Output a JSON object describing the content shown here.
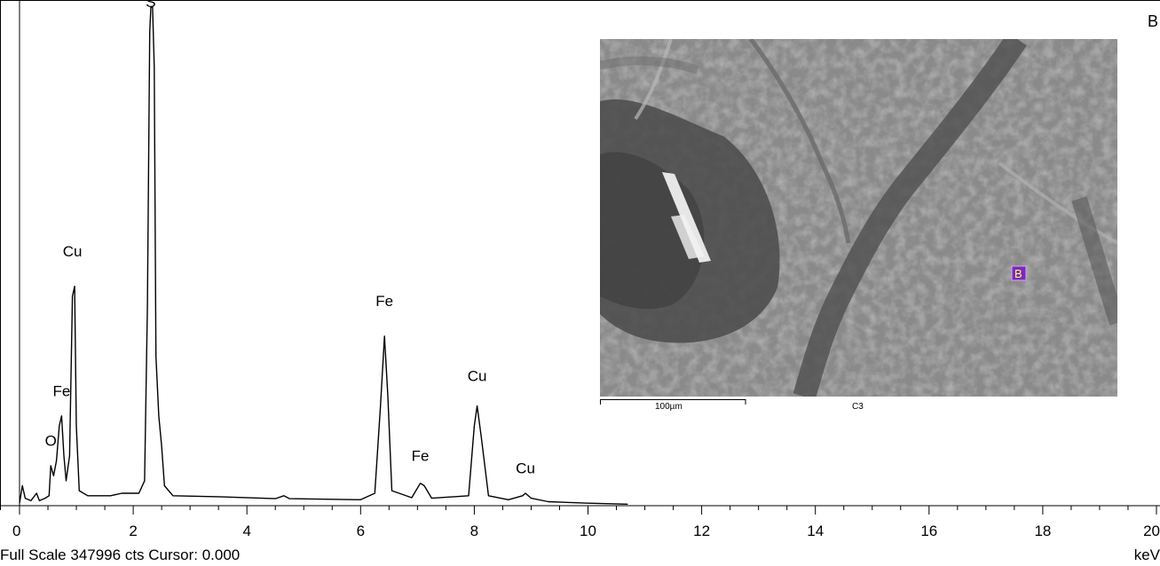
{
  "spectrum_label": "B",
  "status": {
    "text": "Full Scale 347996 cts Cursor: 0.000"
  },
  "unit": "keV",
  "inset": {
    "scale_label": "100µm",
    "image_label": "C3",
    "marker_label": "B"
  },
  "chart_data": {
    "type": "line",
    "xlim": [
      0,
      20
    ],
    "ylim": [
      0,
      347996
    ],
    "xticks": [
      "0",
      "2",
      "4",
      "6",
      "8",
      "10",
      "12",
      "14",
      "16",
      "18",
      "20"
    ],
    "grid": false,
    "series": [
      {
        "points": [
          [
            0.0,
            0.5
          ],
          [
            0.05,
            4
          ],
          [
            0.1,
            1.5
          ],
          [
            0.2,
            1
          ],
          [
            0.3,
            2.5
          ],
          [
            0.35,
            1
          ],
          [
            0.45,
            1.5
          ],
          [
            0.52,
            2
          ],
          [
            0.55,
            8
          ],
          [
            0.6,
            6
          ],
          [
            0.65,
            9
          ],
          [
            0.7,
            16
          ],
          [
            0.74,
            18
          ],
          [
            0.78,
            10
          ],
          [
            0.82,
            5
          ],
          [
            0.88,
            10
          ],
          [
            0.93,
            42
          ],
          [
            0.97,
            44
          ],
          [
            1.0,
            16
          ],
          [
            1.05,
            3
          ],
          [
            1.2,
            2
          ],
          [
            1.6,
            2
          ],
          [
            1.8,
            2.5
          ],
          [
            2.1,
            2.5
          ],
          [
            2.2,
            5
          ],
          [
            2.25,
            40
          ],
          [
            2.29,
            95
          ],
          [
            2.31,
            100
          ],
          [
            2.34,
            100
          ],
          [
            2.37,
            88
          ],
          [
            2.4,
            30
          ],
          [
            2.45,
            18
          ],
          [
            2.5,
            12
          ],
          [
            2.55,
            4
          ],
          [
            2.7,
            2
          ],
          [
            3.5,
            1.8
          ],
          [
            4.5,
            1.4
          ],
          [
            4.65,
            2
          ],
          [
            4.75,
            1.4
          ],
          [
            6.0,
            1.2
          ],
          [
            6.25,
            2.5
          ],
          [
            6.35,
            20
          ],
          [
            6.42,
            34
          ],
          [
            6.48,
            22
          ],
          [
            6.55,
            3
          ],
          [
            6.9,
            1.6
          ],
          [
            7.05,
            4.5
          ],
          [
            7.12,
            4
          ],
          [
            7.25,
            1.5
          ],
          [
            7.9,
            2
          ],
          [
            8.0,
            16
          ],
          [
            8.05,
            20
          ],
          [
            8.12,
            14
          ],
          [
            8.25,
            2
          ],
          [
            8.6,
            1.2
          ],
          [
            8.85,
            2
          ],
          [
            8.9,
            2.5
          ],
          [
            9.0,
            1.5
          ],
          [
            9.3,
            0.8
          ],
          [
            10.0,
            0.5
          ],
          [
            10.7,
            0.3
          ]
        ]
      }
    ],
    "peak_labels": [
      {
        "text": "S",
        "x": 2.31,
        "y": 100
      },
      {
        "text": "Cu",
        "x": 0.93,
        "y": 50
      },
      {
        "text": "Fe",
        "x": 0.74,
        "y": 22
      },
      {
        "text": "O",
        "x": 0.55,
        "y": 12
      },
      {
        "text": "Fe",
        "x": 6.42,
        "y": 40
      },
      {
        "text": "Fe",
        "x": 7.05,
        "y": 9
      },
      {
        "text": "Cu",
        "x": 8.05,
        "y": 25
      },
      {
        "text": "Cu",
        "x": 8.9,
        "y": 6.5
      }
    ]
  }
}
